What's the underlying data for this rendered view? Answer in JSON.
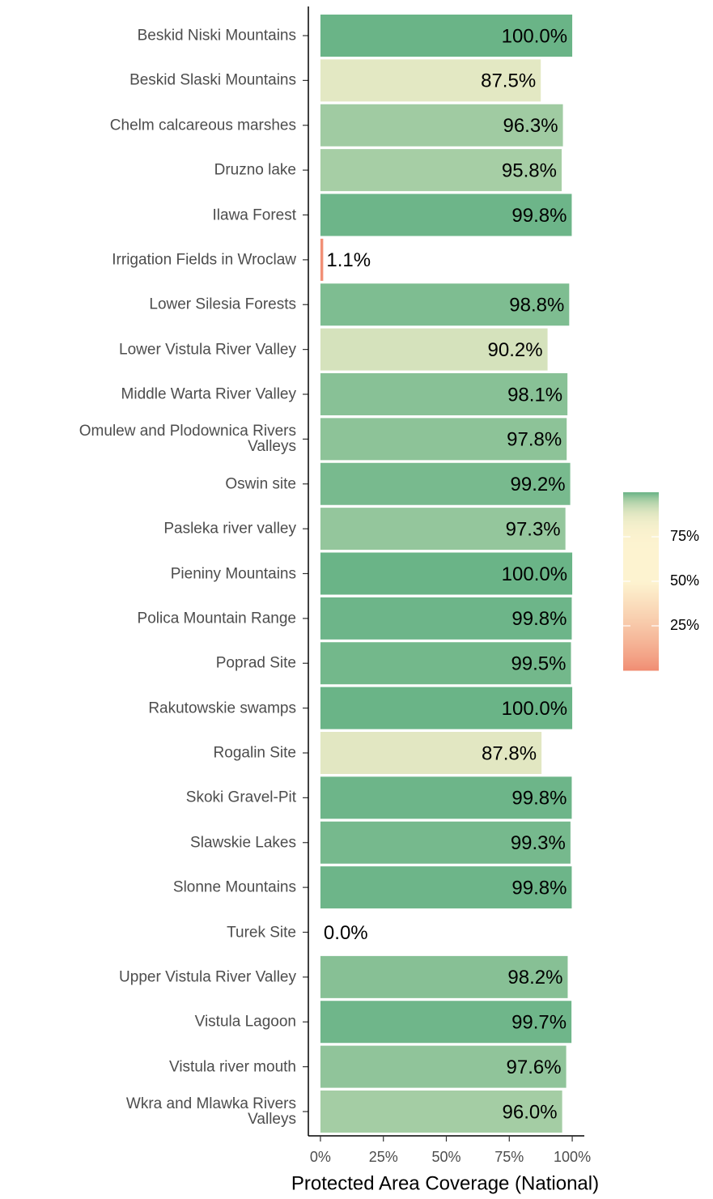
{
  "chart_data": {
    "type": "bar",
    "orientation": "horizontal",
    "x_label": "Protected Area Coverage (National)",
    "categories": [
      "Beskid Niski Mountains",
      "Beskid Slaski Mountains",
      "Chelm calcareous marshes",
      "Druzno lake",
      "Ilawa Forest",
      "Irrigation Fields in Wroclaw",
      "Lower Silesia Forests",
      "Lower Vistula River Valley",
      "Middle Warta River Valley",
      "Omulew and Plodownica Rivers\nValleys",
      "Oswin site",
      "Pasleka river valley",
      "Pieniny Mountains",
      "Polica Mountain Range",
      "Poprad Site",
      "Rakutowskie swamps",
      "Rogalin Site",
      "Skoki Gravel-Pit",
      "Slawskie Lakes",
      "Slonne Mountains",
      "Turek Site",
      "Upper Vistula River Valley",
      "Vistula Lagoon",
      "Vistula river mouth",
      "Wkra and Mlawka Rivers\nValleys"
    ],
    "values": [
      100,
      87.5,
      96.3,
      95.8,
      99.8,
      1.1,
      98.8,
      90.2,
      98.1,
      97.8,
      99.2,
      97.3,
      100,
      99.8,
      99.5,
      100,
      87.8,
      99.8,
      99.3,
      99.8,
      0,
      98.2,
      99.7,
      97.6,
      96.0
    ],
    "value_labels": [
      "100.0%",
      "87.5%",
      "96.3%",
      "95.8%",
      "99.8%",
      "1.1%",
      "98.8%",
      "90.2%",
      "98.1%",
      "97.8%",
      "99.2%",
      "97.3%",
      "100.0%",
      "99.8%",
      "99.5%",
      "100.0%",
      "87.8%",
      "99.8%",
      "99.3%",
      "99.8%",
      "0.0%",
      "98.2%",
      "99.7%",
      "97.6%",
      "96.0%"
    ],
    "xlim": [
      -4.8,
      104.8
    ],
    "xticks": [
      {
        "value": 0,
        "label": "0%"
      },
      {
        "value": 25,
        "label": "25%"
      },
      {
        "value": 50,
        "label": "50%"
      },
      {
        "value": 75,
        "label": "75%"
      },
      {
        "value": 100,
        "label": "100%"
      }
    ],
    "color_scale": {
      "low": "#f08a70",
      "mid": "#fdf3d0",
      "high": "#6ab487"
    },
    "legend": {
      "position": "right",
      "lim": [
        0,
        100
      ],
      "ticks": [
        {
          "value": 25,
          "label": "25%"
        },
        {
          "value": 50,
          "label": "50%"
        },
        {
          "value": 75,
          "label": "75%"
        }
      ]
    }
  }
}
